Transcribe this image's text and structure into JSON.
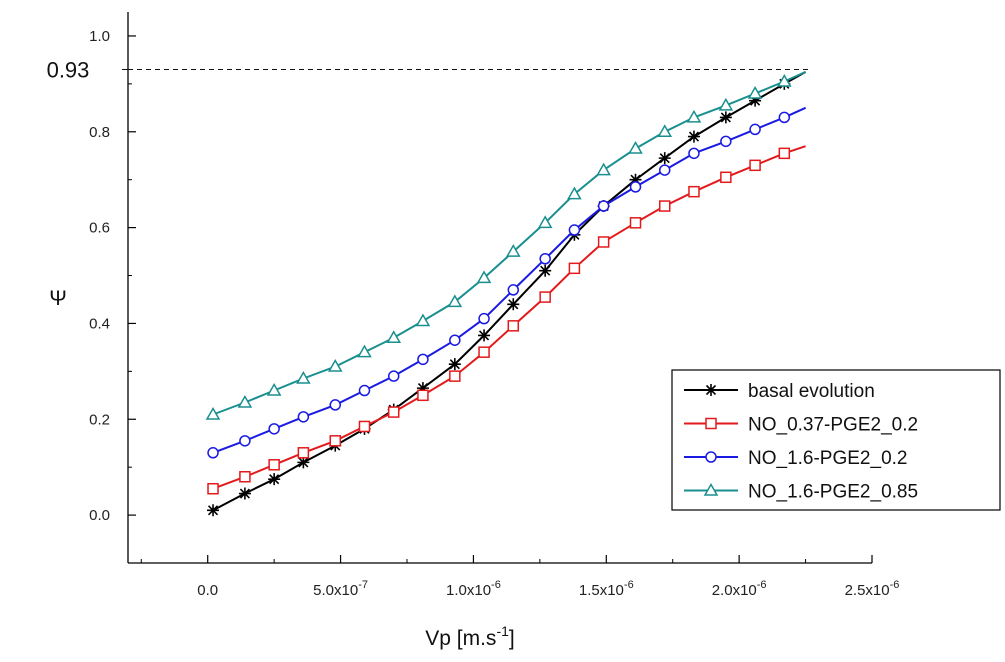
{
  "chart_data": {
    "type": "line",
    "xlabel": "Vp [m.s",
    "xlabel_sup": "-1",
    "xlabel_close": "]",
    "ylabel": "Ψ",
    "xlim": [
      -3e-07,
      2.5e-06
    ],
    "ylim": [
      -0.1,
      1.05
    ],
    "x_ticks": [
      {
        "value": 0,
        "mantissa": "0.0",
        "exp": ""
      },
      {
        "value": 5e-07,
        "mantissa": "5.0x10",
        "exp": "-7"
      },
      {
        "value": 1e-06,
        "mantissa": "1.0x10",
        "exp": "-6"
      },
      {
        "value": 1.5e-06,
        "mantissa": "1.5x10",
        "exp": "-6"
      },
      {
        "value": 2e-06,
        "mantissa": "2.0x10",
        "exp": "-6"
      },
      {
        "value": 2.5e-06,
        "mantissa": "2.5x10",
        "exp": "-6"
      }
    ],
    "y_ticks": [
      {
        "value": 0.0,
        "label": "0.0"
      },
      {
        "value": 0.2,
        "label": "0.2"
      },
      {
        "value": 0.4,
        "label": "0.4"
      },
      {
        "value": 0.6,
        "label": "0.6"
      },
      {
        "value": 0.8,
        "label": "0.8"
      },
      {
        "value": 1.0,
        "label": "1.0"
      }
    ],
    "reference_line": {
      "value": 0.93,
      "label": "0.93"
    },
    "grid": false,
    "legend_position": "bottom-right",
    "series": [
      {
        "name": "basal evolution",
        "color": "#000000",
        "marker": "asterisk",
        "x": [
          2e-08,
          1.4e-07,
          2.5e-07,
          3.6e-07,
          4.8e-07,
          5.9e-07,
          7e-07,
          8.1e-07,
          9.3e-07,
          1.04e-06,
          1.15e-06,
          1.27e-06,
          1.38e-06,
          1.49e-06,
          1.61e-06,
          1.72e-06,
          1.83e-06,
          1.95e-06,
          2.06e-06,
          2.17e-06,
          2.25e-06
        ],
        "y": [
          0.01,
          0.045,
          0.075,
          0.11,
          0.145,
          0.18,
          0.22,
          0.265,
          0.315,
          0.375,
          0.44,
          0.51,
          0.585,
          0.645,
          0.7,
          0.745,
          0.79,
          0.83,
          0.865,
          0.9,
          0.925
        ]
      },
      {
        "name": "NO_0.37-PGE2_0.2",
        "color": "#e31a1c",
        "marker": "square",
        "x": [
          2e-08,
          1.4e-07,
          2.5e-07,
          3.6e-07,
          4.8e-07,
          5.9e-07,
          7e-07,
          8.1e-07,
          9.3e-07,
          1.04e-06,
          1.15e-06,
          1.27e-06,
          1.38e-06,
          1.49e-06,
          1.61e-06,
          1.72e-06,
          1.83e-06,
          1.95e-06,
          2.06e-06,
          2.17e-06,
          2.25e-06
        ],
        "y": [
          0.055,
          0.08,
          0.105,
          0.13,
          0.155,
          0.185,
          0.215,
          0.25,
          0.29,
          0.34,
          0.395,
          0.455,
          0.515,
          0.57,
          0.61,
          0.645,
          0.675,
          0.705,
          0.73,
          0.755,
          0.77
        ]
      },
      {
        "name": "NO_1.6-PGE2_0.2",
        "color": "#1a1ae3",
        "marker": "circle",
        "x": [
          2e-08,
          1.4e-07,
          2.5e-07,
          3.6e-07,
          4.8e-07,
          5.9e-07,
          7e-07,
          8.1e-07,
          9.3e-07,
          1.04e-06,
          1.15e-06,
          1.27e-06,
          1.38e-06,
          1.49e-06,
          1.61e-06,
          1.72e-06,
          1.83e-06,
          1.95e-06,
          2.06e-06,
          2.17e-06,
          2.25e-06
        ],
        "y": [
          0.13,
          0.155,
          0.18,
          0.205,
          0.23,
          0.26,
          0.29,
          0.325,
          0.365,
          0.41,
          0.47,
          0.535,
          0.595,
          0.645,
          0.685,
          0.72,
          0.755,
          0.78,
          0.805,
          0.83,
          0.85
        ]
      },
      {
        "name": "NO_1.6-PGE2_0.85",
        "color": "#1a8f8f",
        "marker": "triangle",
        "x": [
          2e-08,
          1.4e-07,
          2.5e-07,
          3.6e-07,
          4.8e-07,
          5.9e-07,
          7e-07,
          8.1e-07,
          9.3e-07,
          1.04e-06,
          1.15e-06,
          1.27e-06,
          1.38e-06,
          1.49e-06,
          1.61e-06,
          1.72e-06,
          1.83e-06,
          1.95e-06,
          2.06e-06,
          2.17e-06,
          2.25e-06
        ],
        "y": [
          0.21,
          0.235,
          0.26,
          0.285,
          0.31,
          0.34,
          0.37,
          0.405,
          0.445,
          0.495,
          0.55,
          0.61,
          0.67,
          0.72,
          0.765,
          0.8,
          0.83,
          0.855,
          0.88,
          0.905,
          0.925
        ]
      }
    ]
  }
}
